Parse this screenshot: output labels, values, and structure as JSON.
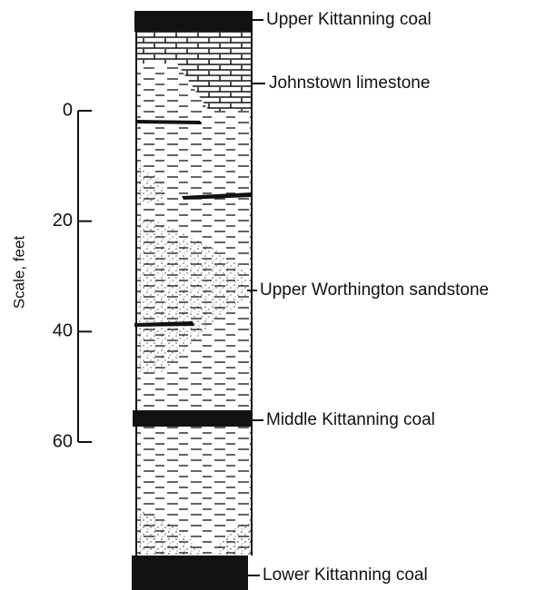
{
  "scale": {
    "label": "Scale, feet",
    "ticks": [
      0,
      20,
      40,
      60
    ]
  },
  "layers": [
    {
      "label": "Upper Kittanning coal"
    },
    {
      "label": "Johnstown limestone"
    },
    {
      "label": "Upper Worthington sandstone"
    },
    {
      "label": "Middle Kittanning coal"
    },
    {
      "label": "Lower Kittanning coal"
    }
  ]
}
